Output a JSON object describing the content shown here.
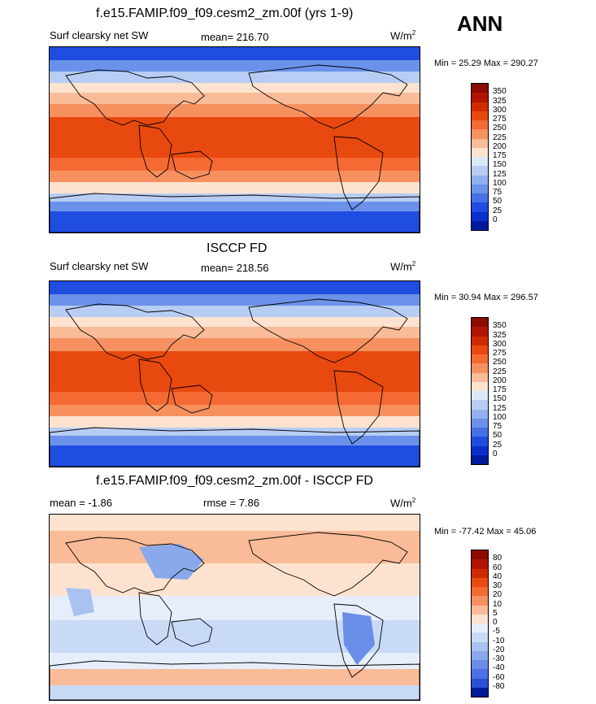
{
  "annual_label": "ANN",
  "panels": [
    {
      "title": "f.e15.FAMIP.f09_f09.cesm2_zm.00f (yrs 1-9)",
      "left_label": "Surf clearsky net SW",
      "center_label": "mean= 216.70",
      "units": "W/m",
      "units_sup": "2",
      "minmax": "Min =  25.29 Max = 290.27",
      "levels": [
        "350",
        "325",
        "300",
        "275",
        "250",
        "225",
        "200",
        "175",
        "150",
        "125",
        "100",
        "75",
        "50",
        "25",
        "0"
      ],
      "palette": [
        "#8c0a00",
        "#b11300",
        "#d22a00",
        "#e8490f",
        "#f46a32",
        "#f6915f",
        "#f9bb98",
        "#fde3cf",
        "#dbe8f8",
        "#b7cdf3",
        "#91b1ee",
        "#6b92ea",
        "#4670e6",
        "#1e4de0",
        "#0a2fcf",
        "#001a9e"
      ]
    },
    {
      "title": "ISCCP FD",
      "left_label": "Surf clearsky net SW",
      "center_label": "mean= 218.56",
      "units": "W/m",
      "units_sup": "2",
      "minmax": "Min =  30.94 Max = 296.57",
      "levels": [
        "350",
        "325",
        "300",
        "275",
        "250",
        "225",
        "200",
        "175",
        "150",
        "125",
        "100",
        "75",
        "50",
        "25",
        "0"
      ],
      "palette": [
        "#8c0a00",
        "#b11300",
        "#d22a00",
        "#e8490f",
        "#f46a32",
        "#f6915f",
        "#f9bb98",
        "#fde3cf",
        "#dbe8f8",
        "#b7cdf3",
        "#91b1ee",
        "#6b92ea",
        "#4670e6",
        "#1e4de0",
        "#0a2fcf",
        "#001a9e"
      ]
    },
    {
      "title": "f.e15.FAMIP.f09_f09.cesm2_zm.00f - ISCCP FD",
      "left_label": "mean =  -1.86",
      "center_label": "rmse =   7.86",
      "units": "W/m",
      "units_sup": "2",
      "minmax": "Min = -77.42 Max =  45.06",
      "levels": [
        "80",
        "60",
        "40",
        "30",
        "20",
        "10",
        "5",
        "0",
        "-5",
        "-10",
        "-20",
        "-30",
        "-40",
        "-60",
        "-80"
      ],
      "palette": [
        "#8c0a00",
        "#b11300",
        "#d22a00",
        "#e8490f",
        "#f46a32",
        "#f6915f",
        "#f9bb98",
        "#fde3cf",
        "#e6eefb",
        "#c9daf6",
        "#a9c2f1",
        "#8aa9ec",
        "#6a8ee8",
        "#4a70e3",
        "#2a4fd8",
        "#001a9e"
      ]
    }
  ]
}
